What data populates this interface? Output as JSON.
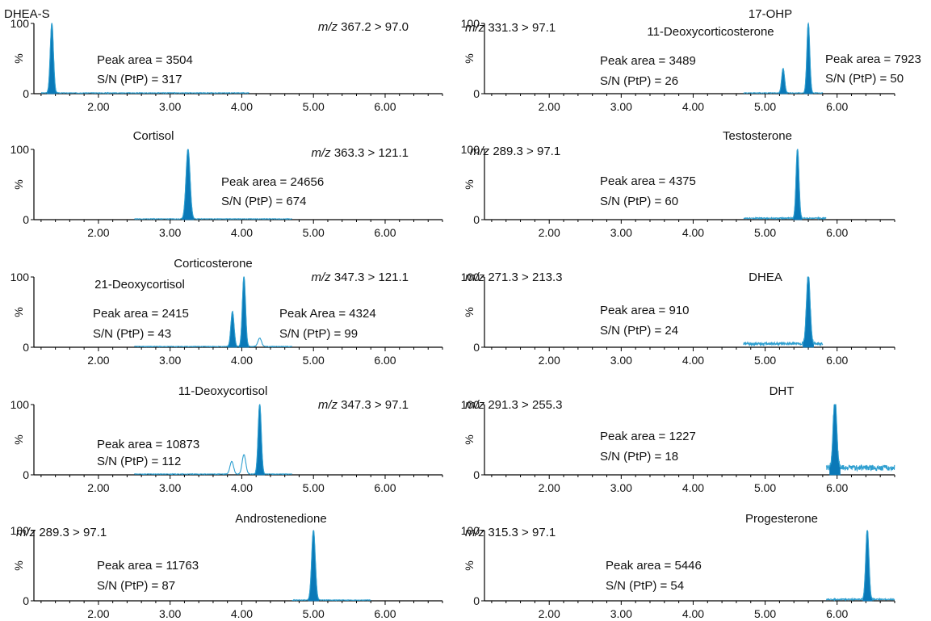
{
  "chart_data": [
    {
      "type": "area",
      "col": 0,
      "row": 0,
      "xlim": [
        1.1,
        6.8
      ],
      "ylim": [
        0,
        100
      ],
      "xticks": [
        "2.00",
        "3.00",
        "4.00",
        "5.00",
        "6.00"
      ],
      "ylabel": "%",
      "ytick_labels": [
        "0",
        "100"
      ],
      "mz_prefix": "m/z",
      "mz_value": "367.2 > 97.0",
      "peak_name": "DHEA-S",
      "area_label": "Peak area = 3504",
      "sn_label": "S/N (PtP) = 317",
      "trace_range": [
        1.2,
        4.1
      ],
      "peaks": [
        {
          "x": 1.35,
          "height": 100,
          "width": 0.022,
          "filled": true
        }
      ],
      "baseline": 1
    },
    {
      "type": "area",
      "col": 0,
      "row": 1,
      "xlim": [
        1.1,
        6.8
      ],
      "ylim": [
        0,
        100
      ],
      "xticks": [
        "2.00",
        "3.00",
        "4.00",
        "5.00",
        "6.00"
      ],
      "ylabel": "%",
      "ytick_labels": [
        "0",
        "100"
      ],
      "mz_prefix": "m/z",
      "mz_value": "363.3 > 121.1",
      "peak_name": "Cortisol",
      "area_label": "Peak area = 24656",
      "sn_label": "S/N (PtP) = 674",
      "trace_range": [
        2.5,
        4.7
      ],
      "peaks": [
        {
          "x": 3.25,
          "height": 100,
          "width": 0.028,
          "filled": true
        }
      ],
      "baseline": 1
    },
    {
      "type": "area",
      "col": 0,
      "row": 2,
      "xlim": [
        1.1,
        6.8
      ],
      "ylim": [
        0,
        100
      ],
      "xticks": [
        "2.00",
        "3.00",
        "4.00",
        "5.00",
        "6.00"
      ],
      "ylabel": "%",
      "ytick_labels": [
        "0",
        "100"
      ],
      "mz_prefix": "m/z",
      "mz_value": "347.3 > 121.1",
      "peak_name": "Corticosterone",
      "peak_name_2": "21-Deoxycortisol",
      "area_label": "Peak area = 2415",
      "sn_label": "S/N (PtP) = 43",
      "area_label_2": "Peak Area = 4324",
      "sn_label_2": "S/N (PtP) = 99",
      "trace_range": [
        2.5,
        4.7
      ],
      "peaks": [
        {
          "x": 3.87,
          "height": 50,
          "width": 0.022,
          "filled": true
        },
        {
          "x": 4.03,
          "height": 100,
          "width": 0.022,
          "filled": true
        },
        {
          "x": 4.25,
          "height": 12,
          "width": 0.025,
          "filled": false
        }
      ],
      "baseline": 1
    },
    {
      "type": "area",
      "col": 0,
      "row": 3,
      "xlim": [
        1.1,
        6.8
      ],
      "ylim": [
        0,
        100
      ],
      "xticks": [
        "2.00",
        "3.00",
        "4.00",
        "5.00",
        "6.00"
      ],
      "ylabel": "%",
      "ytick_labels": [
        "0",
        "100"
      ],
      "mz_prefix": "m/z",
      "mz_value": "347.3 > 97.1",
      "peak_name": "11-Deoxycortisol",
      "area_label": "Peak area = 10873",
      "sn_label": "S/N (PtP) = 112",
      "trace_range": [
        2.5,
        4.7
      ],
      "peaks": [
        {
          "x": 3.86,
          "height": 18,
          "width": 0.025,
          "filled": false
        },
        {
          "x": 4.03,
          "height": 28,
          "width": 0.025,
          "filled": false
        },
        {
          "x": 4.25,
          "height": 100,
          "width": 0.022,
          "filled": true
        }
      ],
      "baseline": 1
    },
    {
      "type": "area",
      "col": 0,
      "row": 4,
      "xlim": [
        1.1,
        6.8
      ],
      "ylim": [
        0,
        100
      ],
      "xticks": [
        "2.00",
        "3.00",
        "4.00",
        "5.00",
        "6.00"
      ],
      "ylabel": "%",
      "ytick_labels": [
        "0",
        "100"
      ],
      "mz_prefix": "m/z",
      "mz_value": "289.3 > 97.1",
      "peak_name": "Androstenedione",
      "area_label": "Peak area = 11763",
      "sn_label": "S/N (PtP) = 87",
      "trace_range": [
        4.7,
        5.8
      ],
      "peaks": [
        {
          "x": 5.0,
          "height": 100,
          "width": 0.025,
          "filled": true
        }
      ],
      "baseline": 1
    },
    {
      "type": "area",
      "col": 1,
      "row": 0,
      "xlim": [
        1.1,
        6.8
      ],
      "ylim": [
        0,
        100
      ],
      "xticks": [
        "2.00",
        "3.00",
        "4.00",
        "5.00",
        "6.00"
      ],
      "ylabel": "%",
      "ytick_labels": [
        "0",
        "100"
      ],
      "mz_prefix": "m/z",
      "mz_value": "331.3 > 97.1",
      "peak_name": "17-OHP",
      "peak_name_2": "11-Deoxycorticosterone",
      "area_label": "Peak area = 3489",
      "sn_label": "S/N (PtP) = 26",
      "area_label_2": "Peak area = 7923",
      "sn_label_2": "S/N (PtP) = 50",
      "trace_range": [
        4.7,
        5.8
      ],
      "peaks": [
        {
          "x": 5.25,
          "height": 35,
          "width": 0.02,
          "filled": true
        },
        {
          "x": 5.6,
          "height": 100,
          "width": 0.02,
          "filled": true
        }
      ],
      "baseline": 1
    },
    {
      "type": "area",
      "col": 1,
      "row": 1,
      "xlim": [
        1.1,
        6.8
      ],
      "ylim": [
        0,
        100
      ],
      "xticks": [
        "2.00",
        "3.00",
        "4.00",
        "5.00",
        "6.00"
      ],
      "ylabel": "%",
      "ytick_labels": [
        "0",
        "100"
      ],
      "mz_prefix": "m/z",
      "mz_value": "289.3 > 97.1",
      "peak_name": "Testosterone",
      "area_label": "Peak area = 4375",
      "sn_label": "S/N (PtP) = 60",
      "trace_range": [
        4.7,
        5.85
      ],
      "peaks": [
        {
          "x": 5.45,
          "height": 100,
          "width": 0.02,
          "filled": true
        }
      ],
      "baseline": 2
    },
    {
      "type": "area",
      "col": 1,
      "row": 2,
      "xlim": [
        1.1,
        6.8
      ],
      "ylim": [
        0,
        100
      ],
      "xticks": [
        "2.00",
        "3.00",
        "4.00",
        "5.00",
        "6.00"
      ],
      "ylabel": "%",
      "ytick_labels": [
        "0",
        "100"
      ],
      "mz_prefix": "m/z",
      "mz_value": "271.3 > 213.3",
      "peak_name": "DHEA",
      "area_label": "Peak area = 910",
      "sn_label": "S/N (PtP) = 24",
      "trace_range": [
        4.7,
        5.8
      ],
      "peaks": [
        {
          "x": 5.6,
          "height": 100,
          "width": 0.025,
          "filled": true
        }
      ],
      "baseline": 5
    },
    {
      "type": "area",
      "col": 1,
      "row": 3,
      "xlim": [
        1.1,
        6.8
      ],
      "ylim": [
        0,
        100
      ],
      "xticks": [
        "2.00",
        "3.00",
        "4.00",
        "5.00",
        "6.00"
      ],
      "ylabel": "%",
      "ytick_labels": [
        "0",
        "100"
      ],
      "mz_prefix": "m/z",
      "mz_value": "291.3 > 255.3",
      "peak_name": "DHT",
      "area_label": "Peak area = 1227",
      "sn_label": "S/N (PtP) = 18",
      "trace_range": [
        5.85,
        6.8
      ],
      "peaks": [
        {
          "x": 5.97,
          "height": 100,
          "width": 0.025,
          "filled": true
        }
      ],
      "baseline": 10
    },
    {
      "type": "area",
      "col": 1,
      "row": 4,
      "xlim": [
        1.1,
        6.8
      ],
      "ylim": [
        0,
        100
      ],
      "xticks": [
        "2.00",
        "3.00",
        "4.00",
        "5.00",
        "6.00"
      ],
      "ylabel": "%",
      "ytick_labels": [
        "0",
        "100"
      ],
      "mz_prefix": "m/z",
      "mz_value": "315.3 > 97.1",
      "peak_name": "Progesterone",
      "area_label": "Peak area = 5446",
      "sn_label": "S/N (PtP) = 54",
      "trace_range": [
        5.85,
        6.8
      ],
      "peaks": [
        {
          "x": 6.42,
          "height": 100,
          "width": 0.022,
          "filled": true
        }
      ],
      "baseline": 2
    }
  ],
  "colors": {
    "trace": "#2e9fd0",
    "fill": "#0a79b8",
    "axis": "#000000"
  }
}
